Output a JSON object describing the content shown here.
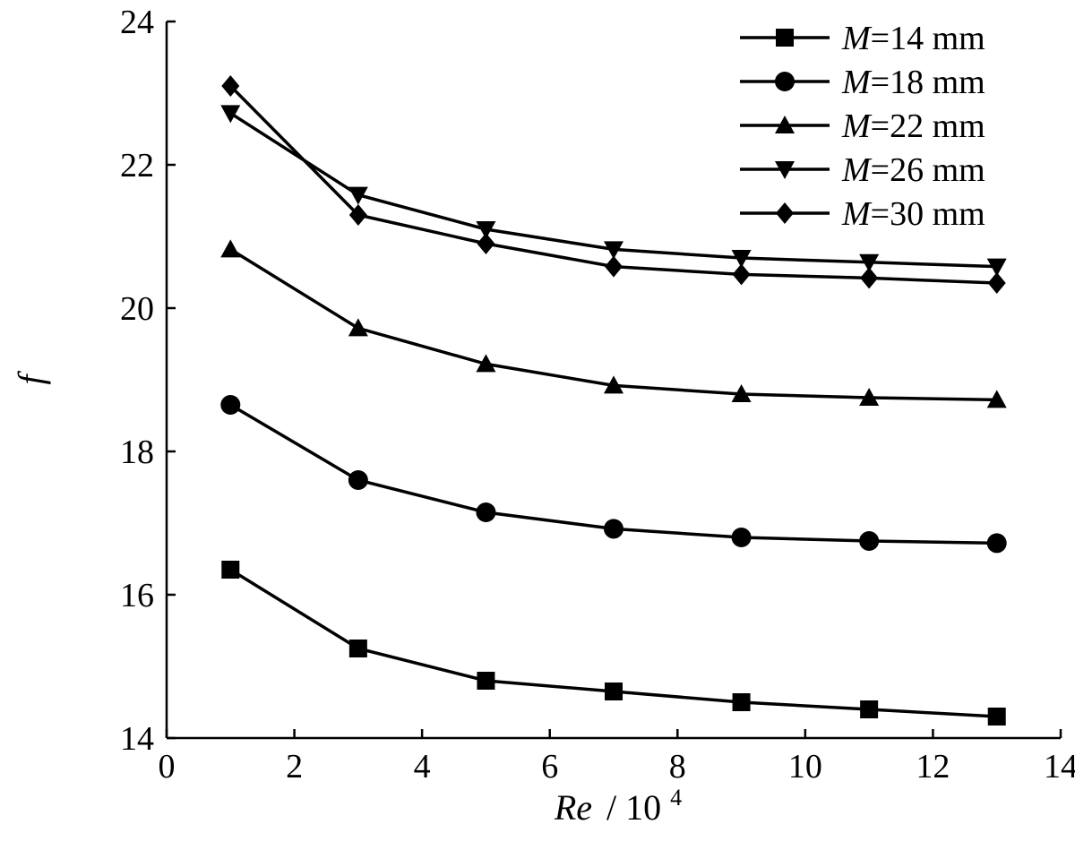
{
  "chart_data": {
    "type": "line",
    "xlabel_var": "Re",
    "xlabel_unit": "/ 10",
    "xlabel_exp": "4",
    "ylabel": "f",
    "xlim": [
      0,
      14
    ],
    "ylim": [
      14,
      24
    ],
    "xticks": [
      "0",
      "2",
      "4",
      "6",
      "8",
      "10",
      "12",
      "14"
    ],
    "yticks": [
      "14",
      "16",
      "18",
      "20",
      "22",
      "24"
    ],
    "grid": false,
    "legend_position": "top-right",
    "series": [
      {
        "name_var": "M",
        "name_rest": "=14 mm",
        "marker": "square",
        "x": [
          1,
          3,
          5,
          7,
          9,
          11,
          13
        ],
        "y": [
          16.35,
          15.25,
          14.8,
          14.65,
          14.5,
          14.4,
          14.3
        ]
      },
      {
        "name_var": "M",
        "name_rest": "=18 mm",
        "marker": "circle",
        "x": [
          1,
          3,
          5,
          7,
          9,
          11,
          13
        ],
        "y": [
          18.65,
          17.6,
          17.15,
          16.92,
          16.8,
          16.75,
          16.72
        ]
      },
      {
        "name_var": "M",
        "name_rest": "=22 mm",
        "marker": "triangle-up",
        "x": [
          1,
          3,
          5,
          7,
          9,
          11,
          13
        ],
        "y": [
          20.82,
          19.72,
          19.22,
          18.92,
          18.8,
          18.75,
          18.72
        ]
      },
      {
        "name_var": "M",
        "name_rest": "=26 mm",
        "marker": "triangle-down",
        "x": [
          1,
          3,
          5,
          7,
          9,
          11,
          13
        ],
        "y": [
          22.72,
          21.58,
          21.1,
          20.82,
          20.7,
          20.64,
          20.58
        ]
      },
      {
        "name_var": "M",
        "name_rest": "=30 mm",
        "marker": "diamond",
        "x": [
          1,
          3,
          5,
          7,
          9,
          11,
          13
        ],
        "y": [
          23.1,
          21.3,
          20.9,
          20.58,
          20.47,
          20.42,
          20.35
        ]
      }
    ]
  }
}
